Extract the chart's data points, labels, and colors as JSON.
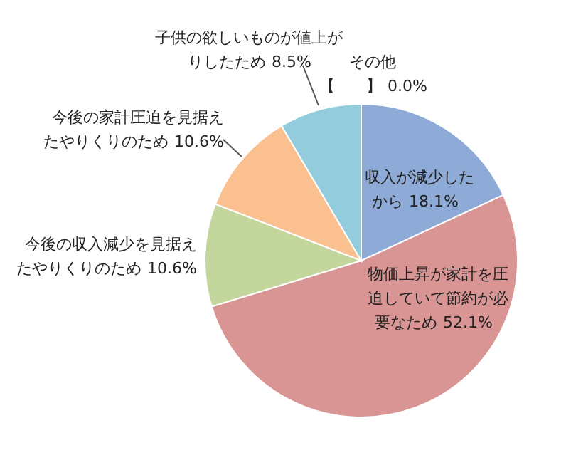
{
  "chart_data": {
    "type": "pie",
    "categories": [
      "収入が減少したから",
      "物価上昇が家計を圧迫していて節約が必要なため",
      "今後の収入減少を見据えたやりくりのため",
      "今後の家計圧迫を見据えたやりくりのため",
      "子供の欲しいものが値上がりしたため",
      "その他【　　】"
    ],
    "values": [
      18.1,
      52.1,
      10.6,
      10.6,
      8.5,
      0.0
    ],
    "colors": [
      "#8eaad6",
      "#d99594",
      "#c3d69b",
      "#fac090",
      "#93cddd",
      "#b2a2c7"
    ],
    "value_labels": [
      "18.1%",
      "52.1%",
      "10.6%",
      "10.6%",
      "8.5%",
      "0.0%"
    ]
  }
}
